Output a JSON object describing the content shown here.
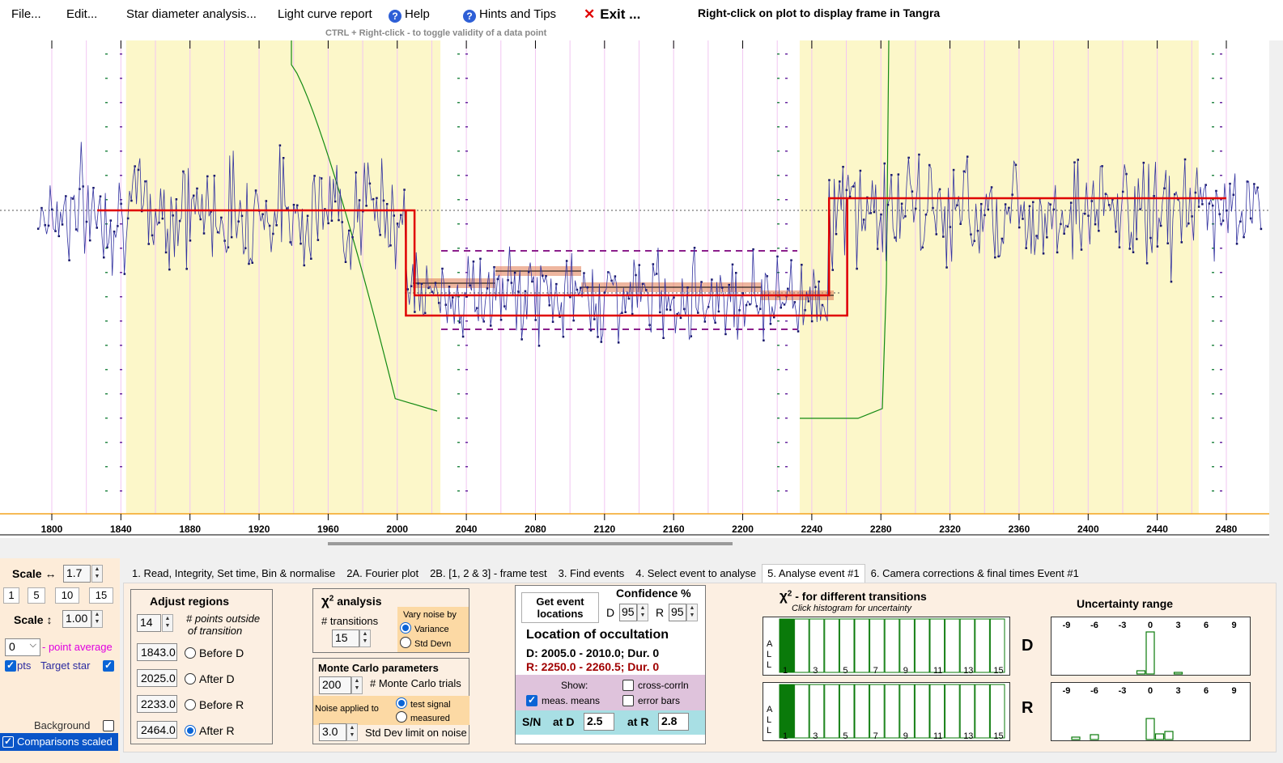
{
  "menu": {
    "file": "File...",
    "edit": "Edit...",
    "star_diameter": "Star diameter analysis...",
    "light_curve": "Light curve report",
    "help": "Help",
    "hints": "Hints and Tips",
    "exit": "Exit ...",
    "ctrl_hint": "CTRL + Right-click  -  to toggle validity of a data point",
    "right_click_hint": "Right-click on plot to display frame in Tangra"
  },
  "colors": {
    "curve": "#3333a0",
    "model": "#e00000",
    "region": "#fcf7c9",
    "comparison": "#138a13",
    "envelope": "#8b1f8b",
    "highlight": "#e07a50",
    "axis": "#f3a31e"
  },
  "chart_data": {
    "type": "line",
    "title": "",
    "xlabel": "",
    "ylabel": "",
    "x_ticks": [
      "1800",
      "1840",
      "1880",
      "1920",
      "1960",
      "2000",
      "2040",
      "2080",
      "2120",
      "2160",
      "2200",
      "2240",
      "2280",
      "2320",
      "2360",
      "2400",
      "2440",
      "2480"
    ],
    "xlim": [
      1790,
      2500
    ],
    "regions": [
      [
        1843,
        2025
      ],
      [
        2233,
        2464
      ]
    ],
    "model_levels": {
      "baseline": 1.0,
      "event": 0.28
    },
    "d_transition": [
      2005,
      2010
    ],
    "r_transition": [
      2250,
      2260.5
    ]
  },
  "left": {
    "scale_h_label": "Scale ↔",
    "scale_h_value": "1.7",
    "scale_buttons": [
      "1",
      "5",
      "10",
      "15"
    ],
    "scale_v_label": "Scale ↕",
    "scale_v_value": "1.00",
    "avg_value": "0",
    "point_average": "- point average",
    "pts": "pts",
    "target_star": "Target star",
    "background": "Background",
    "comparisons": "Comparisons scaled"
  },
  "tabs": [
    "1.  Read, Integrity, Set time, Bin & normalise",
    "2A. Fourier plot",
    "2B. [1, 2 & 3] - frame test",
    "3. Find events",
    "4. Select event to analyse",
    "5. Analyse event #1",
    "6. Camera corrections & final times Event #1"
  ],
  "adjust": {
    "title": "Adjust regions",
    "points_value": "14",
    "points_label_1": "# points outside",
    "points_label_2": "of transition",
    "before_d_value": "1843.0",
    "before_d": "Before D",
    "after_d_value": "2025.0",
    "after_d": "After D",
    "before_r_value": "2233.0",
    "before_r": "Before R",
    "after_r_value": "2464.0",
    "after_r": "After R"
  },
  "chi": {
    "title": "χ",
    "title_sup": "2",
    "title_rest": " analysis",
    "transitions_label": "# transitions",
    "transitions_value": "15",
    "vary_noise": "Vary noise by",
    "variance": "Variance",
    "std_devn": "Std Devn"
  },
  "monte": {
    "title": "Monte Carlo parameters",
    "trials_value": "200",
    "trials_label": "# Monte Carlo trials",
    "noise_applied": "Noise applied to",
    "test_signal": "test signal",
    "measured": "measured",
    "std_value": "3.0",
    "std_label": "Std Dev limit on noise"
  },
  "location": {
    "get_events": "Get event locations",
    "confidence": "Confidence %",
    "d_label": "D",
    "d_value": "95",
    "r_label": "R",
    "r_value": "95",
    "title": "Location of occultation",
    "d_line": "D: 2005.0 - 2010.0; Dur. 0",
    "r_line": "R: 2250.0 - 2260.5; Dur. 0",
    "show": "Show:",
    "cross_corr": "cross-corrln",
    "meas_means": "meas. means",
    "error_bars": "error bars",
    "sn": "S/N",
    "at_d": "at D",
    "at_d_value": "2.5",
    "at_r": "at R",
    "at_r_value": "2.8"
  },
  "chi_trans": {
    "title": "χ",
    "title_sup": "2",
    "title_rest": " - for different transitions",
    "sub": "Click histogram for uncertainty",
    "side": [
      "A",
      "L",
      "L"
    ],
    "ticks": [
      "1",
      "3",
      "5",
      "7",
      "9",
      "11",
      "13",
      "15"
    ],
    "d": "D",
    "r": "R"
  },
  "uncert": {
    "title": "Uncertainty range",
    "ticks": [
      "-9",
      "-6",
      "-3",
      "0",
      "3",
      "6",
      "9"
    ]
  }
}
